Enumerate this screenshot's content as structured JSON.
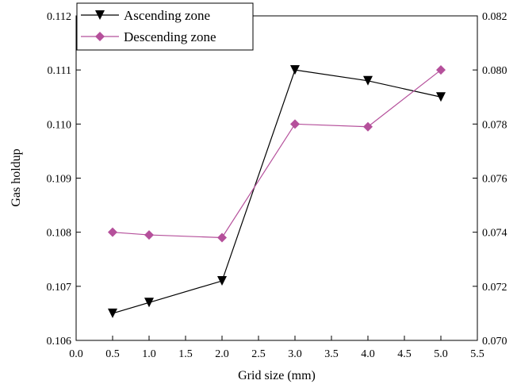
{
  "chart_data": {
    "type": "line",
    "title": "",
    "xlabel": "Grid size (mm)",
    "ylabel": "Gas holdup",
    "y2label": "",
    "xlim": [
      0.0,
      5.5
    ],
    "ylim": [
      0.106,
      0.112
    ],
    "y2lim": [
      0.07,
      0.082
    ],
    "xticks": [
      "0.0",
      "0.5",
      "1.0",
      "1.5",
      "2.0",
      "2.5",
      "3.0",
      "3.5",
      "4.0",
      "4.5",
      "5.0",
      "5.5"
    ],
    "yticks": [
      "0.106",
      "0.107",
      "0.108",
      "0.109",
      "0.110",
      "0.111",
      "0.112"
    ],
    "y2ticks": [
      "0.070",
      "0.072",
      "0.074",
      "0.076",
      "0.078",
      "0.080",
      "0.082"
    ],
    "grid": false,
    "legend_position": "top-left",
    "series": [
      {
        "name": "Ascending zone",
        "axis": "left",
        "marker": "triangle-down",
        "color": "#000000",
        "x": [
          0.5,
          1.0,
          2.0,
          3.0,
          4.0,
          5.0
        ],
        "y": [
          0.1065,
          0.1067,
          0.1071,
          0.111,
          0.1108,
          0.1105
        ]
      },
      {
        "name": "Descending zone",
        "axis": "right",
        "marker": "diamond",
        "color": "#b5509b",
        "x": [
          0.5,
          1.0,
          2.0,
          3.0,
          4.0,
          5.0
        ],
        "y": [
          0.074,
          0.0739,
          0.0738,
          0.078,
          0.0779,
          0.08
        ]
      }
    ]
  }
}
